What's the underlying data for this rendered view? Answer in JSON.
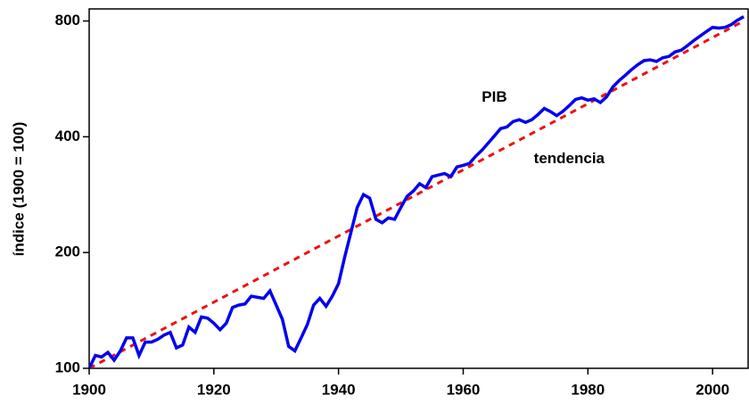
{
  "chart_data": {
    "type": "line",
    "ylabel": "índice (1900 = 100)",
    "annotations": [
      {
        "text": "PIB",
        "x": 1965,
        "y": 505
      },
      {
        "text": "tendencia",
        "x": 1977,
        "y": 350
      }
    ],
    "x": [
      1900,
      1901,
      1902,
      1903,
      1904,
      1905,
      1906,
      1907,
      1908,
      1909,
      1910,
      1911,
      1912,
      1913,
      1914,
      1915,
      1916,
      1917,
      1918,
      1919,
      1920,
      1921,
      1922,
      1923,
      1924,
      1925,
      1926,
      1927,
      1928,
      1929,
      1930,
      1931,
      1932,
      1933,
      1934,
      1935,
      1936,
      1937,
      1938,
      1939,
      1940,
      1941,
      1942,
      1943,
      1944,
      1945,
      1946,
      1947,
      1948,
      1949,
      1950,
      1951,
      1952,
      1953,
      1954,
      1955,
      1956,
      1957,
      1958,
      1959,
      1960,
      1961,
      1962,
      1963,
      1964,
      1965,
      1966,
      1967,
      1968,
      1969,
      1970,
      1971,
      1972,
      1973,
      1974,
      1975,
      1976,
      1977,
      1978,
      1979,
      1980,
      1981,
      1982,
      1983,
      1984,
      1985,
      1986,
      1987,
      1988,
      1989,
      1990,
      1991,
      1992,
      1993,
      1994,
      1995,
      1996,
      1997,
      1998,
      1999,
      2000,
      2001,
      2002,
      2003,
      2004,
      2005
    ],
    "series": [
      {
        "name": "PIB",
        "color": "#0000ee",
        "values": [
          100,
          108,
          107,
          110,
          105,
          111,
          120,
          120,
          108,
          117,
          117,
          119,
          122,
          124,
          113,
          115,
          128,
          124,
          136,
          135,
          131,
          126,
          131,
          144,
          146,
          147,
          154,
          153,
          152,
          159,
          146,
          134,
          114,
          111,
          120,
          130,
          146,
          152,
          145,
          154,
          166,
          195,
          226,
          262,
          283,
          277,
          244,
          239,
          246,
          244,
          262,
          280,
          289,
          302,
          295,
          315,
          318,
          321,
          315,
          334,
          337,
          341,
          356,
          369,
          385,
          402,
          420,
          424,
          438,
          443,
          436,
          443,
          457,
          474,
          465,
          454,
          466,
          482,
          500,
          505,
          498,
          502,
          491,
          508,
          539,
          560,
          578,
          598,
          616,
          631,
          634,
          628,
          642,
          647,
          665,
          672,
          691,
          712,
          731,
          751,
          770,
          767,
          770,
          783,
          804,
          821
        ]
      },
      {
        "name": "tendencia",
        "color": "#ee1111",
        "dashed": true,
        "x": [
          1900,
          2005
        ],
        "values": [
          100,
          800
        ]
      }
    ],
    "xlim": [
      1900,
      2005.7
    ],
    "xticks": [
      1900,
      1920,
      1940,
      1960,
      1980,
      2000
    ],
    "ylim": [
      100,
      860
    ],
    "yticks": [
      100,
      200,
      400,
      800
    ],
    "log_y": true
  }
}
